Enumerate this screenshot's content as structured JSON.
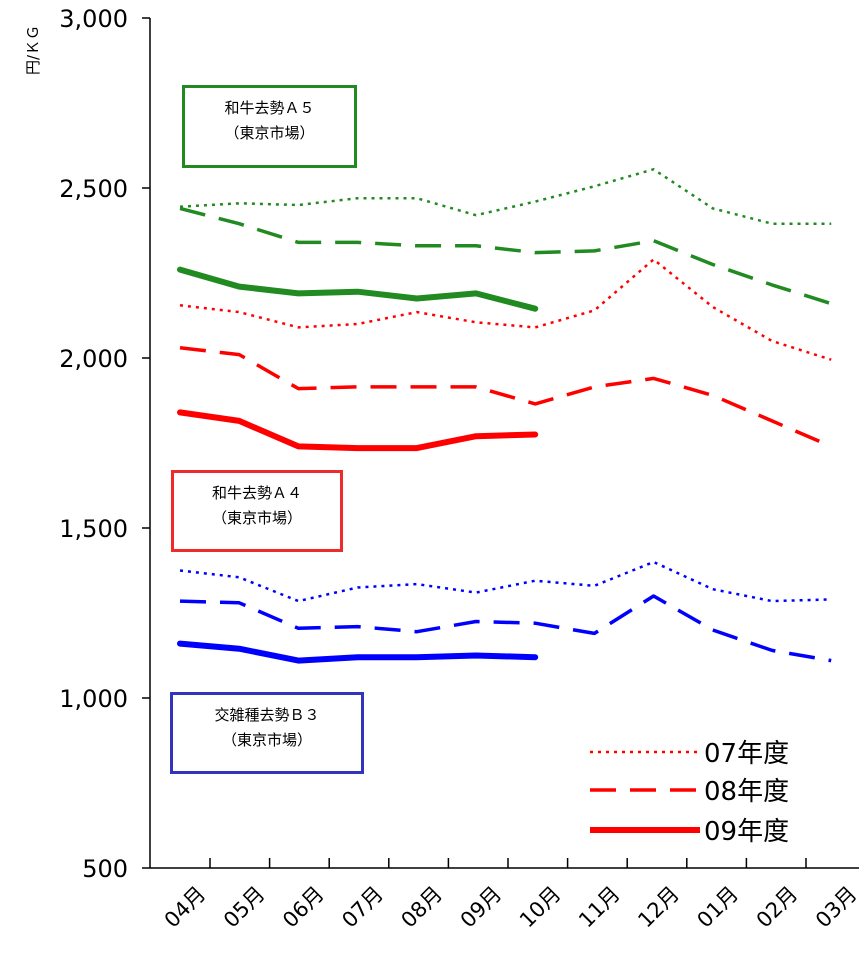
{
  "chart_data": {
    "type": "line",
    "y_unit_label": "円/ＫＧ",
    "ylim": [
      500,
      3000
    ],
    "y_ticks": [
      "3,000",
      "2,500",
      "2,000",
      "1,500",
      "1,000",
      "500"
    ],
    "y_tick_values": [
      3000,
      2500,
      2000,
      1500,
      1000,
      500
    ],
    "categories": [
      "04月",
      "05月",
      "06月",
      "07月",
      "08月",
      "09月",
      "10月",
      "11月",
      "12月",
      "01月",
      "02月",
      "03月"
    ],
    "legend": [
      {
        "label": "07年度",
        "style": "dotted"
      },
      {
        "label": "08年度",
        "style": "dashed"
      },
      {
        "label": "09年度",
        "style": "solid"
      }
    ],
    "groups": [
      {
        "line1": "和牛去勢Ａ５",
        "line2": "（東京市場）",
        "color": "#218a21",
        "series": [
          {
            "name": "07年度",
            "style": "dotted",
            "values": [
              2445,
              2455,
              2450,
              2470,
              2470,
              2420,
              2460,
              2505,
              2555,
              2440,
              2395,
              2395
            ]
          },
          {
            "name": "08年度",
            "style": "dashed",
            "values": [
              2440,
              2395,
              2340,
              2340,
              2330,
              2330,
              2310,
              2315,
              2345,
              2275,
              2215,
              2160
            ]
          },
          {
            "name": "09年度",
            "style": "solid",
            "values": [
              2260,
              2210,
              2190,
              2195,
              2175,
              2190,
              2145,
              null,
              null,
              null,
              null,
              null
            ]
          }
        ]
      },
      {
        "line1": "和牛去勢Ａ４",
        "line2": "（東京市場）",
        "color": "#ff0000",
        "series": [
          {
            "name": "07年度",
            "style": "dotted",
            "values": [
              2155,
              2135,
              2090,
              2100,
              2135,
              2105,
              2090,
              2140,
              2290,
              2150,
              2050,
              1995
            ]
          },
          {
            "name": "08年度",
            "style": "dashed",
            "values": [
              2030,
              2010,
              1910,
              1915,
              1915,
              1915,
              1865,
              1915,
              1940,
              1890,
              1815,
              1740
            ]
          },
          {
            "name": "09年度",
            "style": "solid",
            "values": [
              1840,
              1815,
              1740,
              1735,
              1735,
              1770,
              1775,
              null,
              null,
              null,
              null,
              null
            ]
          }
        ]
      },
      {
        "line1": "交雑種去勢Ｂ３",
        "line2": "（東京市場）",
        "color": "#0000ff",
        "series": [
          {
            "name": "07年度",
            "style": "dotted",
            "values": [
              1375,
              1355,
              1285,
              1325,
              1335,
              1310,
              1345,
              1330,
              1400,
              1320,
              1285,
              1290
            ]
          },
          {
            "name": "08年度",
            "style": "dashed",
            "values": [
              1285,
              1280,
              1205,
              1210,
              1195,
              1225,
              1220,
              1190,
              1300,
              1200,
              1140,
              1110
            ]
          },
          {
            "name": "09年度",
            "style": "solid",
            "values": [
              1160,
              1145,
              1110,
              1120,
              1120,
              1125,
              1120,
              null,
              null,
              null,
              null,
              null
            ]
          }
        ]
      }
    ]
  }
}
